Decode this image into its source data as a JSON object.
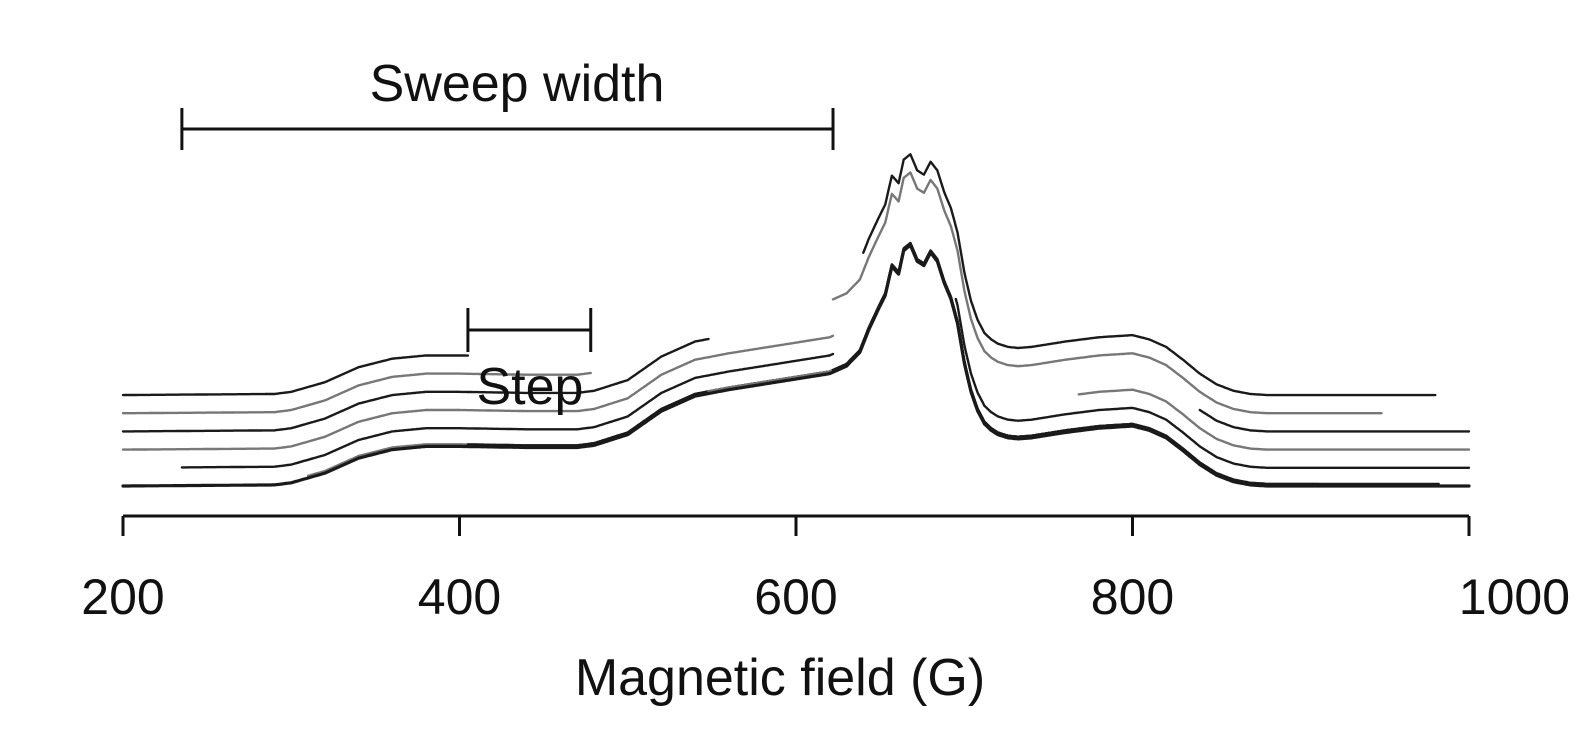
{
  "chart_data": {
    "type": "line",
    "xlabel": "Magnetic field (G)",
    "ylabel": "",
    "xlim": [
      200,
      1000
    ],
    "xticks": [
      200,
      400,
      600,
      800,
      1000
    ],
    "xtick_labels": [
      "200",
      "400",
      "600",
      "800",
      "1000"
    ],
    "grid": false,
    "legend": "none",
    "annotations": {
      "sweep_width": {
        "label": "Sweep width",
        "x_start": 235,
        "x_end": 622
      },
      "step": {
        "label": "Step",
        "x_start": 405,
        "x_end": 478
      }
    },
    "segment_colors": [
      "#1a1a1a",
      "#777777"
    ],
    "full_spectrum": {
      "x": [
        200,
        290,
        300,
        320,
        340,
        360,
        380,
        400,
        440,
        470,
        480,
        500,
        520,
        540,
        560,
        580,
        600,
        620,
        630,
        638,
        643,
        648,
        653,
        657,
        661,
        664,
        668,
        672,
        676,
        680,
        684,
        688,
        692,
        696,
        700,
        704,
        708,
        712,
        716,
        720,
        726,
        732,
        740,
        760,
        780,
        800,
        810,
        820,
        830,
        840,
        850,
        860,
        870,
        880,
        1000
      ],
      "y": [
        0,
        0.01,
        0.03,
        0.12,
        0.26,
        0.34,
        0.37,
        0.37,
        0.36,
        0.36,
        0.38,
        0.48,
        0.7,
        0.84,
        0.9,
        0.95,
        1.0,
        1.05,
        1.12,
        1.25,
        1.45,
        1.62,
        1.78,
        2.05,
        1.98,
        2.2,
        2.25,
        2.1,
        2.06,
        2.18,
        2.1,
        1.9,
        1.75,
        1.52,
        1.15,
        0.88,
        0.7,
        0.58,
        0.52,
        0.48,
        0.45,
        0.44,
        0.45,
        0.5,
        0.54,
        0.56,
        0.52,
        0.45,
        0.33,
        0.2,
        0.1,
        0.04,
        0.01,
        0,
        0
      ],
      "color": "#1a1a1a"
    },
    "segments": [
      {
        "x_start": 200,
        "x_end": 405,
        "offset": 0.85,
        "color": "#1a1a1a"
      },
      {
        "x_start": 200,
        "x_end": 478,
        "offset": 0.68,
        "color": "#777777"
      },
      {
        "x_start": 200,
        "x_end": 548,
        "offset": 0.51,
        "color": "#1a1a1a"
      },
      {
        "x_start": 200,
        "x_end": 622,
        "offset": 0.34,
        "color": "#777777"
      },
      {
        "x_start": 235,
        "x_end": 622,
        "offset": 0.17,
        "color": "#1a1a1a"
      },
      {
        "x_start": 310,
        "x_end": 695,
        "offset": 0.02,
        "color": "#777777"
      },
      {
        "x_start": 405,
        "x_end": 768,
        "offset": 0.02,
        "color": "#1a1a1a"
      },
      {
        "x_start": 478,
        "x_end": 840,
        "offset": 0.02,
        "color": "#1a1a1a"
      },
      {
        "x_start": 548,
        "x_end": 910,
        "offset": 0.02,
        "color": "#777777"
      },
      {
        "x_start": 622,
        "x_end": 982,
        "offset": 0.02,
        "color": "#1a1a1a"
      },
      {
        "x_start": 695,
        "x_end": 1000,
        "offset": 0.17,
        "color": "#1a1a1a"
      },
      {
        "x_start": 768,
        "x_end": 1000,
        "offset": 0.34,
        "color": "#777777"
      },
      {
        "x_start": 840,
        "x_end": 1000,
        "offset": 0.51,
        "color": "#1a1a1a"
      },
      {
        "x_start": 622,
        "x_end": 948,
        "offset": 0.68,
        "color": "#777777"
      },
      {
        "x_start": 640,
        "x_end": 980,
        "offset": 0.85,
        "color": "#1a1a1a"
      }
    ]
  }
}
